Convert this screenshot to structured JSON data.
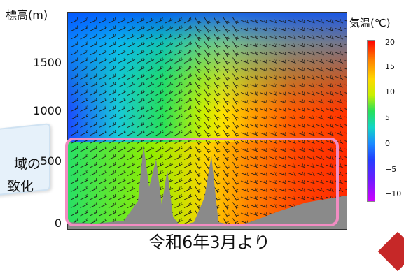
{
  "chart_data": {
    "type": "heatmap",
    "title": "",
    "ylabel": "標高(m)",
    "yticks": [
      "0",
      "500",
      "1000",
      "1500"
    ],
    "ylim": [
      0,
      1800
    ],
    "colorbar": {
      "label": "気温(℃)",
      "ticks": [
        "20",
        "15",
        "10",
        "5",
        "0",
        "−5",
        "−10"
      ],
      "range": [
        -13,
        22
      ]
    },
    "overlay": "wind barbs",
    "highlight_region": {
      "y_range": [
        0,
        700
      ]
    }
  },
  "caption": "令和6年3月より",
  "left_note": {
    "line1": "域の",
    "line2": "致化"
  },
  "colors": {
    "highlight": "#f28cc2",
    "terrain": "#8a8a8a"
  }
}
